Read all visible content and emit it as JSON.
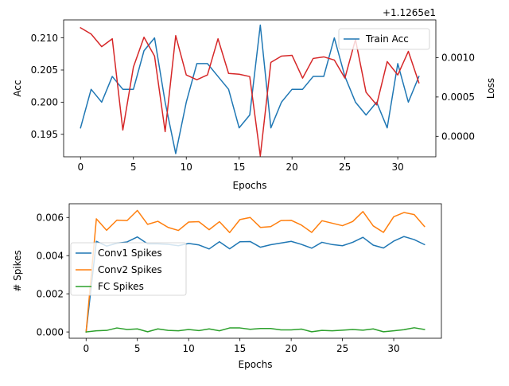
{
  "chart_data": [
    {
      "type": "line",
      "xlabel": "Epochs",
      "ylabel": "Acc",
      "y2label": "Loss",
      "y2_offset_text": "+1.1265e1",
      "xlim": [
        -1.6,
        33.6
      ],
      "ylim": [
        0.1915,
        0.2128
      ],
      "y2lim": [
        -0.00026,
        0.00148
      ],
      "xticks": [
        0,
        5,
        10,
        15,
        20,
        25,
        30
      ],
      "yticks": [
        0.195,
        0.2,
        0.205,
        0.21
      ],
      "ytick_labels": [
        "0.195",
        "0.200",
        "0.205",
        "0.210"
      ],
      "y2ticks": [
        0.0,
        0.0005,
        0.001
      ],
      "y2tick_labels": [
        "0.0000",
        "0.0005",
        "0.0010"
      ],
      "legend": {
        "position": "upper right",
        "entries": [
          "Train Acc"
        ]
      },
      "series": [
        {
          "name": "Train Acc",
          "axis": "left",
          "color": "#1f77b4",
          "x": [
            0,
            1,
            2,
            3,
            4,
            5,
            6,
            7,
            8,
            9,
            10,
            11,
            12,
            13,
            14,
            15,
            16,
            17,
            18,
            19,
            20,
            21,
            22,
            23,
            24,
            25,
            26,
            27,
            28,
            29,
            30,
            31,
            32
          ],
          "values": [
            0.196,
            0.202,
            0.2,
            0.204,
            0.202,
            0.202,
            0.208,
            0.21,
            0.2,
            0.192,
            0.2,
            0.206,
            0.206,
            0.204,
            0.202,
            0.196,
            0.198,
            0.212,
            0.196,
            0.2,
            0.202,
            0.202,
            0.204,
            0.204,
            0.21,
            0.204,
            0.2,
            0.198,
            0.2,
            0.196,
            0.206,
            0.2,
            0.204
          ]
        },
        {
          "axis": "right",
          "color": "#d62728",
          "x": [
            0,
            1,
            2,
            3,
            4,
            5,
            6,
            7,
            8,
            9,
            10,
            11,
            12,
            13,
            14,
            15,
            16,
            17,
            18,
            19,
            20,
            21,
            22,
            23,
            24,
            25,
            26,
            27,
            28,
            29,
            30,
            31,
            32
          ],
          "values": [
            0.00138,
            0.0013,
            0.00114,
            0.00124,
            8e-05,
            0.00088,
            0.00126,
            0.00102,
            6e-05,
            0.00128,
            0.00078,
            0.00072,
            0.00078,
            0.00124,
            0.0008,
            0.00079,
            0.00076,
            -0.00025,
            0.00094,
            0.00102,
            0.00103,
            0.00074,
            0.00099,
            0.00101,
            0.00097,
            0.00074,
            0.00123,
            0.00056,
            0.0004,
            0.00095,
            0.00078,
            0.00108,
            0.00068
          ]
        }
      ]
    },
    {
      "type": "line",
      "xlabel": "Epochs",
      "ylabel": "# Spikes",
      "xlim": [
        -1.65,
        34.65
      ],
      "ylim": [
        -0.00033,
        0.00672
      ],
      "xticks": [
        0,
        5,
        10,
        15,
        20,
        25,
        30
      ],
      "yticks": [
        0.0,
        0.002,
        0.004,
        0.006
      ],
      "ytick_labels": [
        "0.000",
        "0.002",
        "0.004",
        "0.006"
      ],
      "legend": {
        "position": "center left",
        "entries": [
          "Conv1 Spikes",
          "Conv2 Spikes",
          "FC Spikes"
        ]
      },
      "series": [
        {
          "name": "Conv1 Spikes",
          "color": "#1f77b4",
          "x": [
            0,
            1,
            2,
            3,
            4,
            5,
            6,
            7,
            8,
            9,
            10,
            11,
            12,
            13,
            14,
            15,
            16,
            17,
            18,
            19,
            20,
            21,
            22,
            23,
            24,
            25,
            26,
            27,
            28,
            29,
            30,
            31,
            32,
            33
          ],
          "values": [
            0.0,
            0.00475,
            0.0045,
            0.00465,
            0.00472,
            0.00498,
            0.00462,
            0.00462,
            0.00459,
            0.00452,
            0.00464,
            0.00456,
            0.00435,
            0.00473,
            0.00436,
            0.00473,
            0.00474,
            0.00444,
            0.00457,
            0.00466,
            0.00475,
            0.00459,
            0.00439,
            0.0047,
            0.00458,
            0.00452,
            0.0047,
            0.00496,
            0.00455,
            0.0044,
            0.00476,
            0.005,
            0.00484,
            0.00458
          ]
        },
        {
          "name": "Conv2 Spikes",
          "color": "#ff7f0e",
          "x": [
            0,
            1,
            2,
            3,
            4,
            5,
            6,
            7,
            8,
            9,
            10,
            11,
            12,
            13,
            14,
            15,
            16,
            17,
            18,
            19,
            20,
            21,
            22,
            23,
            24,
            25,
            26,
            27,
            28,
            29,
            30,
            31,
            32,
            33
          ],
          "values": [
            0.0,
            0.00593,
            0.00533,
            0.00586,
            0.00584,
            0.00637,
            0.00564,
            0.0058,
            0.00548,
            0.00532,
            0.00576,
            0.00578,
            0.00536,
            0.00578,
            0.00521,
            0.00589,
            0.006,
            0.00548,
            0.00552,
            0.00584,
            0.00585,
            0.0056,
            0.00522,
            0.00583,
            0.0057,
            0.00557,
            0.00579,
            0.00631,
            0.00556,
            0.00522,
            0.00604,
            0.00626,
            0.00615,
            0.00553
          ]
        },
        {
          "name": "FC Spikes",
          "color": "#2ca02c",
          "x": [
            0,
            1,
            2,
            3,
            4,
            5,
            6,
            7,
            8,
            9,
            10,
            11,
            12,
            13,
            14,
            15,
            16,
            17,
            18,
            19,
            20,
            21,
            22,
            23,
            24,
            25,
            26,
            27,
            28,
            29,
            30,
            31,
            32,
            33
          ],
          "values": [
            0.0,
            6e-05,
            8e-05,
            0.00021,
            0.00013,
            0.00016,
            1e-05,
            0.00016,
            8e-05,
            6e-05,
            0.00013,
            7e-05,
            0.00016,
            6e-05,
            0.00021,
            0.00021,
            0.00014,
            0.00018,
            0.00018,
            0.00011,
            0.00011,
            0.00015,
            1e-05,
            8e-05,
            6e-05,
            9e-05,
            0.00013,
            9e-05,
            0.00016,
            1e-05,
            6e-05,
            0.00012,
            0.00022,
            0.00013
          ]
        }
      ]
    }
  ]
}
